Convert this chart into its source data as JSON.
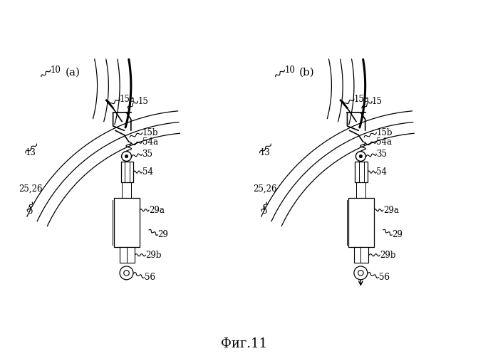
{
  "title": "Фиг.11",
  "label_a": "(a)",
  "label_b": "(b)",
  "bg_color": "#ffffff",
  "line_color": "#000000",
  "fig_width": 6.85,
  "fig_height": 5.0,
  "font_size_labels": 8.5,
  "font_size_title": 13
}
